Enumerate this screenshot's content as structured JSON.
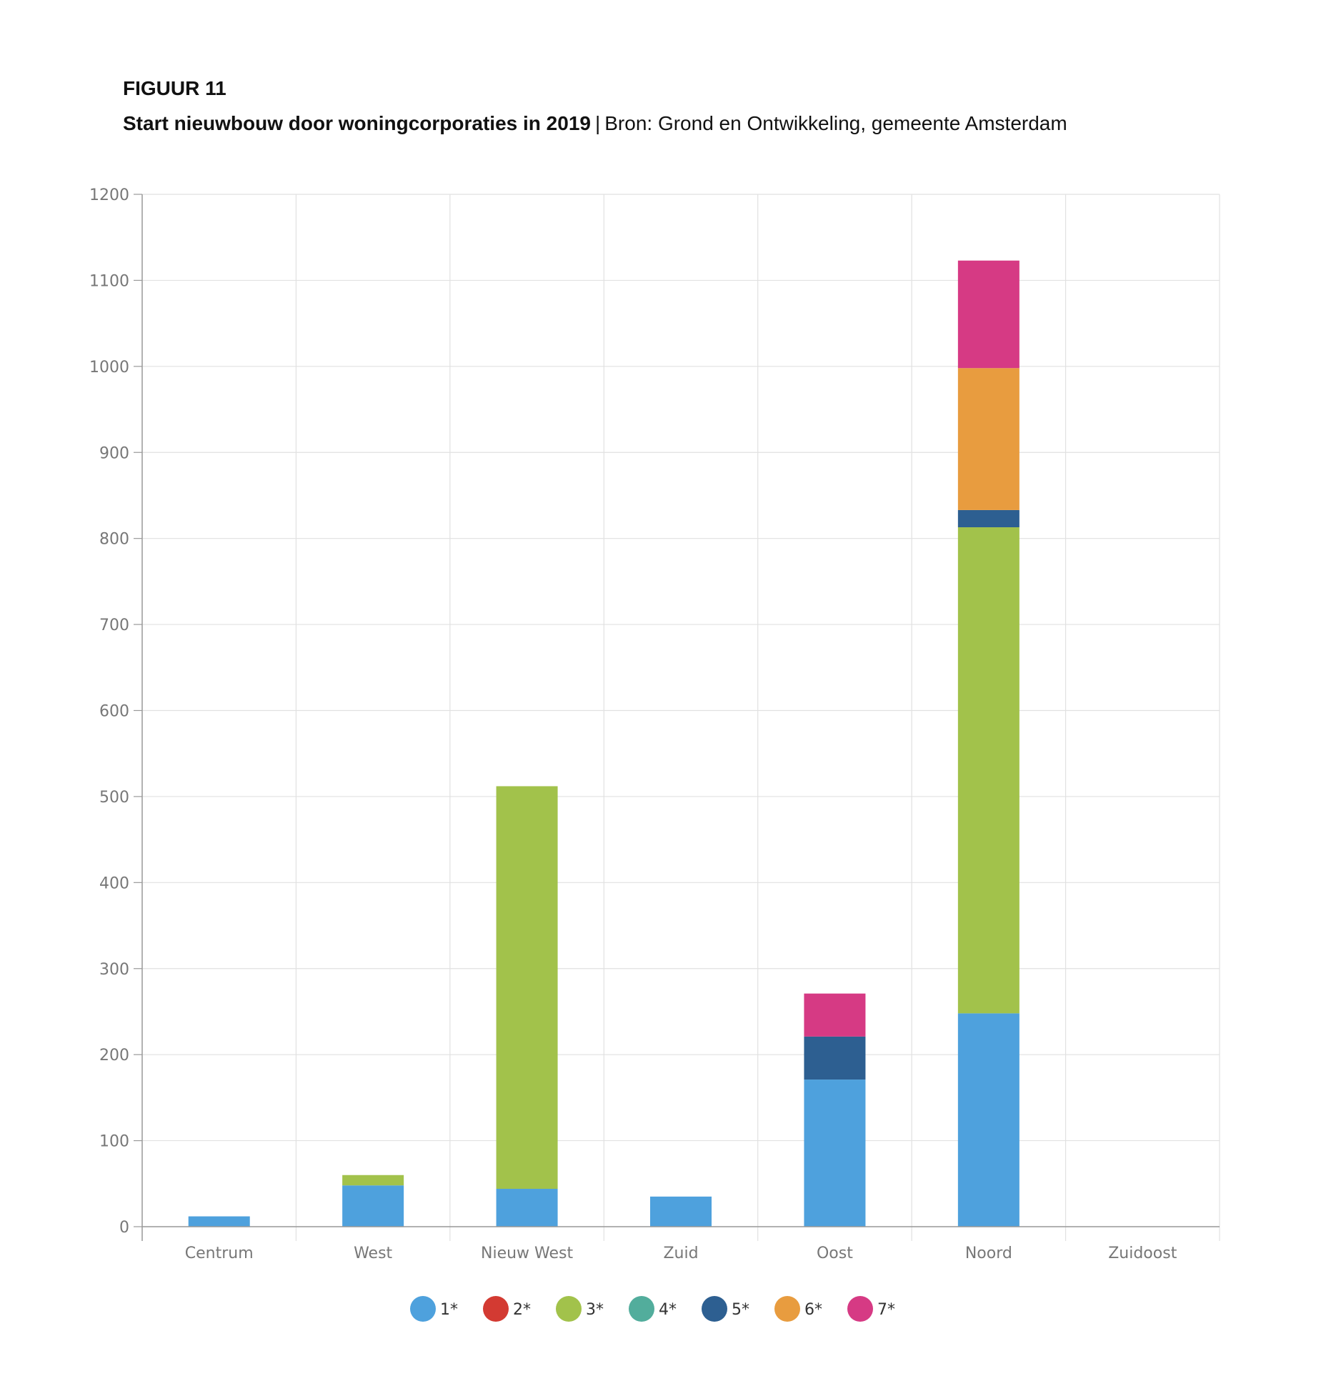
{
  "figure": {
    "label": "FIGUUR 11",
    "title_bold": "Start nieuwbouw door woningcorporaties in 2019",
    "separator": "|",
    "source": "Bron: Grond en Ontwikkeling, gemeente Amsterdam"
  },
  "chart_data": {
    "type": "bar",
    "stacked": true,
    "title": "",
    "xlabel": "",
    "ylabel": "",
    "ylim": [
      0,
      1200
    ],
    "yticks": [
      0,
      100,
      200,
      300,
      400,
      500,
      600,
      700,
      800,
      900,
      1000,
      1100,
      1200
    ],
    "grid": true,
    "legend_position": "bottom",
    "categories": [
      "Centrum",
      "West",
      "Nieuw West",
      "Zuid",
      "Oost",
      "Noord",
      "Zuidoost"
    ],
    "series": [
      {
        "name": "1*",
        "color": "#4ea1dd",
        "values": [
          12,
          48,
          44,
          35,
          171,
          248,
          0
        ]
      },
      {
        "name": "2*",
        "color": "#d33a32",
        "values": [
          0,
          0,
          0,
          0,
          0,
          0,
          0
        ]
      },
      {
        "name": "3*",
        "color": "#a2c24b",
        "values": [
          0,
          12,
          468,
          0,
          0,
          565,
          0
        ]
      },
      {
        "name": "4*",
        "color": "#52ad9c",
        "values": [
          0,
          0,
          0,
          0,
          0,
          0,
          0
        ]
      },
      {
        "name": "5*",
        "color": "#2d5f91",
        "values": [
          0,
          0,
          0,
          0,
          50,
          20,
          0
        ]
      },
      {
        "name": "6*",
        "color": "#e89c3f",
        "values": [
          0,
          0,
          0,
          0,
          0,
          165,
          0
        ]
      },
      {
        "name": "7*",
        "color": "#d63a84",
        "values": [
          0,
          0,
          0,
          0,
          50,
          125,
          0
        ]
      }
    ]
  }
}
